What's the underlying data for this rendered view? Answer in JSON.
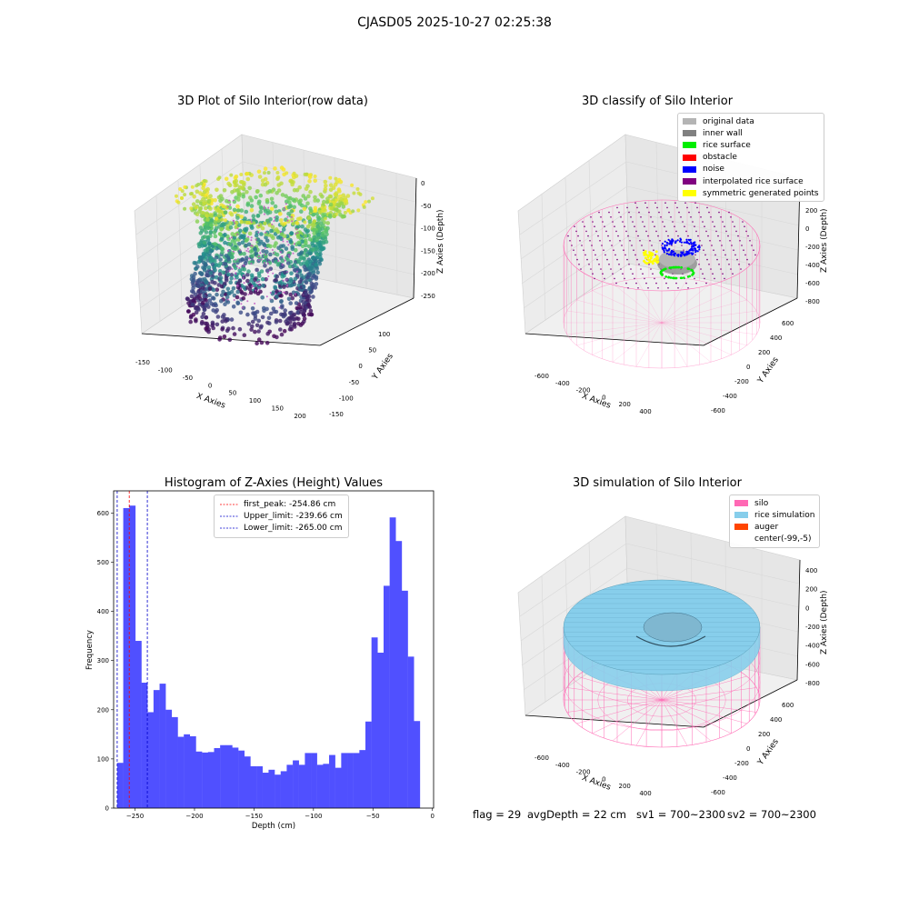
{
  "figure": {
    "suptitle": "CJASD05 2025-10-27 02:25:38",
    "footer": {
      "flag": "flag = 29",
      "avg_depth": "avgDepth = 22 cm",
      "sv1": "sv1 = 700~2300",
      "sv2": "sv2 = 700~2300"
    }
  },
  "chart_data": [
    {
      "type": "scatter",
      "title": "3D Plot of Silo Interior(row data)",
      "xlabel": "X Axies",
      "ylabel": "Y Axies",
      "zlabel": "Z Axies (Depth)",
      "x_ticks": [
        -150,
        -100,
        -50,
        0,
        50,
        100,
        150,
        200
      ],
      "y_ticks": [
        -150,
        -100,
        -50,
        0,
        50,
        100
      ],
      "z_ticks": [
        0,
        -50,
        -100,
        -150,
        -200,
        -250
      ],
      "colormap": "viridis",
      "colormap_colors": [
        "#440154",
        "#3b528b",
        "#21918c",
        "#5ec962",
        "#fde725"
      ],
      "grid": true
    },
    {
      "type": "scatter",
      "title": "3D classify of Silo Interior",
      "xlabel": "X Axies",
      "ylabel": "Y Axies",
      "zlabel": "Z Axies (Depth)",
      "x_ticks": [
        -600,
        -400,
        -200,
        0,
        200,
        400
      ],
      "y_ticks": [
        -600,
        -400,
        -200,
        0,
        200,
        400,
        600
      ],
      "z_ticks": [
        400,
        200,
        0,
        -200,
        -400,
        -600,
        -800
      ],
      "legend_position": "top-right",
      "legend": [
        {
          "label": "original data",
          "color": "#b4b4b4"
        },
        {
          "label": "inner wall",
          "color": "#808080"
        },
        {
          "label": "rice surface",
          "color": "#00ee00"
        },
        {
          "label": "obstacle",
          "color": "#ff0000"
        },
        {
          "label": "noise",
          "color": "#0000ff"
        },
        {
          "label": "interpolated rice surface",
          "color": "#800080"
        },
        {
          "label": "symmetric generated points",
          "color": "#ffff00"
        }
      ],
      "wall_color": "#ff69b4",
      "grid": true
    },
    {
      "type": "bar",
      "title": "Histogram of Z-Axies (Height) Values",
      "xlabel": "Depth (cm)",
      "ylabel": "Frequency",
      "xlim": [
        -268,
        1
      ],
      "ylim": [
        0,
        645
      ],
      "x_ticks": [
        -250,
        -200,
        -150,
        -100,
        -50,
        0
      ],
      "y_ticks": [
        0,
        100,
        200,
        300,
        400,
        500,
        600
      ],
      "bar_color": "#5050ff",
      "bin_start": -265,
      "bin_width": 5.09,
      "values": [
        92,
        610,
        615,
        340,
        255,
        195,
        240,
        253,
        200,
        185,
        145,
        150,
        146,
        115,
        113,
        114,
        122,
        128,
        128,
        123,
        117,
        105,
        85,
        85,
        72,
        78,
        68,
        75,
        88,
        97,
        88,
        112,
        112,
        88,
        90,
        108,
        82,
        112,
        112,
        112,
        118,
        176,
        347,
        316,
        452,
        591,
        543,
        442,
        308,
        177
      ],
      "lines": [
        {
          "label": "first_peak: -254.86 cm",
          "x": -254.86,
          "color": "#ff0000"
        },
        {
          "label": "Upper_limit: -239.66 cm",
          "x": -239.66,
          "color": "#0000cc"
        },
        {
          "label": "Lower_limit: -265.00 cm",
          "x": -265.0,
          "color": "#0000cc"
        }
      ],
      "legend_position": "top-center",
      "grid": false
    },
    {
      "type": "area",
      "title": "3D simulation of Silo Interior",
      "xlabel": "X Axies",
      "ylabel": "Y Axies",
      "zlabel": "Z Axies (Depth)",
      "x_ticks": [
        -600,
        -400,
        -200,
        0,
        200,
        400
      ],
      "y_ticks": [
        -600,
        -400,
        -200,
        0,
        200,
        400,
        600
      ],
      "z_ticks": [
        400,
        200,
        0,
        -200,
        -400,
        -600,
        -800
      ],
      "legend_position": "top-right",
      "legend": [
        {
          "label": "silo",
          "color": "#ff69b4"
        },
        {
          "label": "rice simulation",
          "color": "#87ceeb"
        },
        {
          "label": "auger",
          "color": "#ff4500"
        },
        {
          "label": "center(-99,-5)",
          "color": "#ffffff"
        }
      ],
      "grid": true
    }
  ]
}
